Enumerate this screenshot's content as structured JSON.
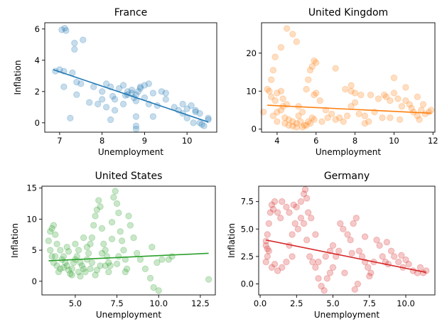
{
  "chart_data": [
    {
      "type": "scatter",
      "title": "France",
      "xlabel": "Unemployment",
      "ylabel": "Inflation",
      "xlim": [
        6.65,
        10.7
      ],
      "ylim": [
        -0.6,
        6.4
      ],
      "xticks": [
        7,
        8,
        9,
        10
      ],
      "yticks": [
        0,
        2,
        4,
        6
      ],
      "color": "#1f77b4",
      "trend": {
        "x": [
          6.85,
          10.5
        ],
        "y": [
          3.4,
          0.05
        ]
      },
      "points": [
        [
          7.05,
          5.95
        ],
        [
          7.15,
          5.9
        ],
        [
          7.12,
          6.05
        ],
        [
          7.35,
          5.1
        ],
        [
          7.35,
          4.7
        ],
        [
          7.55,
          5.3
        ],
        [
          6.9,
          3.3
        ],
        [
          7.0,
          3.4
        ],
        [
          7.1,
          3.3
        ],
        [
          7.3,
          3.2
        ],
        [
          7.4,
          2.6
        ],
        [
          7.5,
          2.5
        ],
        [
          7.1,
          2.3
        ],
        [
          7.4,
          1.8
        ],
        [
          7.25,
          0.3
        ],
        [
          7.7,
          1.3
        ],
        [
          7.9,
          1.2
        ],
        [
          7.8,
          2.3
        ],
        [
          8.0,
          2.0
        ],
        [
          8.0,
          1.5
        ],
        [
          8.1,
          2.5
        ],
        [
          8.2,
          2.3
        ],
        [
          8.25,
          1.7
        ],
        [
          8.3,
          1.5
        ],
        [
          8.1,
          1.0
        ],
        [
          8.3,
          0.8
        ],
        [
          8.2,
          0.2
        ],
        [
          8.4,
          2.2
        ],
        [
          8.5,
          2.4
        ],
        [
          8.5,
          1.2
        ],
        [
          8.6,
          1.8
        ],
        [
          8.6,
          2.0
        ],
        [
          8.7,
          2.1
        ],
        [
          8.7,
          1.9
        ],
        [
          8.75,
          1.6
        ],
        [
          8.8,
          1.4
        ],
        [
          8.8,
          1.8
        ],
        [
          8.9,
          2.2
        ],
        [
          8.9,
          2.3
        ],
        [
          8.85,
          2.0
        ],
        [
          9.0,
          1.6
        ],
        [
          9.0,
          2.4
        ],
        [
          9.1,
          2.5
        ],
        [
          9.1,
          1.2
        ],
        [
          9.2,
          1.9
        ],
        [
          9.2,
          0.4
        ],
        [
          8.8,
          0.4
        ],
        [
          8.8,
          -0.4
        ],
        [
          8.8,
          -0.2
        ],
        [
          9.4,
          2.0
        ],
        [
          9.3,
          1.1
        ],
        [
          9.5,
          1.5
        ],
        [
          9.5,
          1.9
        ],
        [
          9.7,
          1.0
        ],
        [
          9.8,
          0.8
        ],
        [
          9.9,
          1.2
        ],
        [
          9.9,
          0.6
        ],
        [
          10.0,
          0.3
        ],
        [
          10.0,
          0.9
        ],
        [
          10.1,
          1.1
        ],
        [
          10.2,
          0.8
        ],
        [
          10.2,
          0.7
        ],
        [
          10.3,
          0.6
        ],
        [
          10.3,
          0.0
        ],
        [
          10.4,
          -0.2
        ],
        [
          10.5,
          0.3
        ],
        [
          10.5,
          0.2
        ],
        [
          10.15,
          0.0
        ],
        [
          10.35,
          -0.1
        ],
        [
          8.55,
          1.75
        ]
      ]
    },
    {
      "type": "scatter",
      "title": "United Kingdom",
      "xlabel": "Unemployment",
      "ylabel": "",
      "xlim": [
        3.2,
        12.1
      ],
      "ylim": [
        -0.8,
        28
      ],
      "xticks": [
        4,
        6,
        8,
        10,
        12
      ],
      "yticks": [
        0,
        10,
        20
      ],
      "color": "#ff7f0e",
      "trend": {
        "x": [
          3.5,
          11.9
        ],
        "y": [
          6.3,
          4.2
        ]
      },
      "points": [
        [
          3.6,
          10.0
        ],
        [
          3.7,
          13.0
        ],
        [
          3.8,
          15.5
        ],
        [
          3.9,
          19.0
        ],
        [
          4.2,
          21.5
        ],
        [
          4.5,
          26.5
        ],
        [
          4.8,
          25.0
        ],
        [
          5.0,
          23.0
        ],
        [
          3.5,
          10.5
        ],
        [
          3.7,
          8.5
        ],
        [
          3.9,
          7.5
        ],
        [
          4.0,
          9.5
        ],
        [
          4.2,
          10.0
        ],
        [
          4.3,
          8.0
        ],
        [
          4.5,
          6.5
        ],
        [
          3.8,
          3.5
        ],
        [
          4.0,
          4.5
        ],
        [
          4.2,
          5.0
        ],
        [
          4.4,
          3.0
        ],
        [
          4.6,
          2.5
        ],
        [
          4.8,
          2.0
        ],
        [
          5.0,
          1.5
        ],
        [
          5.2,
          2.0
        ],
        [
          5.4,
          1.0
        ],
        [
          4.6,
          1.0
        ],
        [
          4.8,
          0.8
        ],
        [
          5.0,
          0.5
        ],
        [
          5.3,
          0.5
        ],
        [
          5.5,
          1.0
        ],
        [
          5.6,
          2.0
        ],
        [
          5.7,
          1.5
        ],
        [
          5.8,
          3.0
        ],
        [
          5.9,
          2.5
        ],
        [
          5.5,
          10.5
        ],
        [
          5.6,
          13.0
        ],
        [
          5.7,
          15.5
        ],
        [
          5.8,
          16.5
        ],
        [
          5.9,
          18.0
        ],
        [
          6.0,
          17.5
        ],
        [
          5.9,
          9.0
        ],
        [
          6.2,
          7.5
        ],
        [
          6.5,
          5.0
        ],
        [
          6.8,
          4.0
        ],
        [
          7.0,
          2.5
        ],
        [
          7.2,
          3.0
        ],
        [
          7.0,
          16.0
        ],
        [
          7.5,
          10.5
        ],
        [
          7.8,
          10.0
        ],
        [
          8.0,
          9.5
        ],
        [
          7.8,
          6.0
        ],
        [
          8.0,
          7.0
        ],
        [
          8.2,
          4.0
        ],
        [
          8.5,
          1.5
        ],
        [
          8.7,
          2.0
        ],
        [
          9.0,
          4.5
        ],
        [
          9.2,
          8.0
        ],
        [
          9.4,
          3.0
        ],
        [
          9.5,
          9.0
        ],
        [
          9.6,
          8.5
        ],
        [
          9.8,
          7.5
        ],
        [
          10.0,
          9.5
        ],
        [
          10.2,
          8.0
        ],
        [
          10.4,
          6.0
        ],
        [
          10.6,
          7.5
        ],
        [
          10.8,
          6.5
        ],
        [
          10.9,
          5.5
        ],
        [
          11.0,
          4.5
        ],
        [
          11.2,
          3.5
        ],
        [
          11.3,
          2.5
        ],
        [
          11.4,
          5.0
        ],
        [
          11.5,
          6.5
        ],
        [
          11.6,
          4.0
        ],
        [
          11.8,
          4.5
        ],
        [
          11.9,
          5.0
        ],
        [
          10.0,
          13.5
        ],
        [
          10.6,
          11.0
        ],
        [
          11.2,
          8.5
        ],
        [
          8.5,
          3.5
        ],
        [
          6.3,
          2.0
        ],
        [
          6.6,
          3.0
        ],
        [
          7.4,
          2.0
        ],
        [
          7.6,
          3.5
        ],
        [
          9.8,
          3.0
        ],
        [
          10.3,
          2.5
        ],
        [
          4.3,
          6.0
        ],
        [
          5.1,
          6.0
        ],
        [
          5.3,
          4.5
        ],
        [
          6.0,
          9.5
        ],
        [
          7.8,
          11.5
        ],
        [
          8.3,
          9.0
        ],
        [
          8.8,
          9.0
        ],
        [
          4.0,
          2.0
        ],
        [
          4.4,
          1.5
        ],
        [
          5.1,
          3.5
        ],
        [
          3.3,
          4.5
        ]
      ]
    },
    {
      "type": "scatter",
      "title": "United States",
      "xlabel": "Unemployment",
      "ylabel": "Inflation",
      "xlim": [
        3.0,
        13.4
      ],
      "ylim": [
        -2.2,
        15.3
      ],
      "xticks": [
        5.0,
        7.5,
        10.0,
        12.5
      ],
      "yticks": [
        0,
        5,
        10,
        15
      ],
      "color": "#2ca02c",
      "trend": {
        "x": [
          3.4,
          13.0
        ],
        "y": [
          3.3,
          4.5
        ]
      },
      "points": [
        [
          3.4,
          6.5
        ],
        [
          3.5,
          8.0
        ],
        [
          3.6,
          8.5
        ],
        [
          3.7,
          9.0
        ],
        [
          3.8,
          7.5
        ],
        [
          3.9,
          6.0
        ],
        [
          3.5,
          5.0
        ],
        [
          3.6,
          4.0
        ],
        [
          3.7,
          3.0
        ],
        [
          3.9,
          2.5
        ],
        [
          4.0,
          1.5
        ],
        [
          4.1,
          2.0
        ],
        [
          4.2,
          3.5
        ],
        [
          4.3,
          4.0
        ],
        [
          4.4,
          3.0
        ],
        [
          4.5,
          2.5
        ],
        [
          4.6,
          1.8
        ],
        [
          4.7,
          1.2
        ],
        [
          4.8,
          2.0
        ],
        [
          4.9,
          3.0
        ],
        [
          5.0,
          3.5
        ],
        [
          5.1,
          4.0
        ],
        [
          5.2,
          5.0
        ],
        [
          5.3,
          3.0
        ],
        [
          5.4,
          2.5
        ],
        [
          5.5,
          2.0
        ],
        [
          5.6,
          1.5
        ],
        [
          5.7,
          3.5
        ],
        [
          5.8,
          4.5
        ],
        [
          5.9,
          6.0
        ],
        [
          6.0,
          7.0
        ],
        [
          6.1,
          9.0
        ],
        [
          6.2,
          10.5
        ],
        [
          6.3,
          11.5
        ],
        [
          6.4,
          13.0
        ],
        [
          6.5,
          12.0
        ],
        [
          6.6,
          8.5
        ],
        [
          6.7,
          6.0
        ],
        [
          6.8,
          5.0
        ],
        [
          6.9,
          4.0
        ],
        [
          7.0,
          3.0
        ],
        [
          7.1,
          2.5
        ],
        [
          7.2,
          9.5
        ],
        [
          7.3,
          13.5
        ],
        [
          7.4,
          14.5
        ],
        [
          7.5,
          12.5
        ],
        [
          7.6,
          11.0
        ],
        [
          7.7,
          8.0
        ],
        [
          7.8,
          6.5
        ],
        [
          7.9,
          5.0
        ],
        [
          8.0,
          3.5
        ],
        [
          8.1,
          2.0
        ],
        [
          8.2,
          10.5
        ],
        [
          8.5,
          7.0
        ],
        [
          8.7,
          4.5
        ],
        [
          8.9,
          3.5
        ],
        [
          9.2,
          2.0
        ],
        [
          9.5,
          0.5
        ],
        [
          9.7,
          -1.0
        ],
        [
          10.0,
          -1.5
        ],
        [
          9.6,
          5.5
        ],
        [
          9.9,
          3.0
        ],
        [
          10.2,
          3.5
        ],
        [
          10.6,
          3.5
        ],
        [
          10.8,
          4.0
        ],
        [
          13.0,
          0.3
        ],
        [
          4.5,
          5.5
        ],
        [
          5.0,
          6.0
        ],
        [
          5.5,
          7.0
        ],
        [
          6.0,
          3.0
        ],
        [
          6.5,
          2.5
        ],
        [
          7.0,
          1.5
        ],
        [
          5.2,
          1.5
        ],
        [
          4.8,
          1.0
        ],
        [
          5.9,
          2.0
        ],
        [
          6.3,
          1.8
        ],
        [
          6.8,
          2.5
        ],
        [
          7.5,
          2.8
        ],
        [
          8.0,
          1.5
        ],
        [
          4.1,
          5.0
        ],
        [
          3.8,
          4.0
        ],
        [
          4.6,
          4.8
        ],
        [
          5.7,
          5.5
        ],
        [
          6.6,
          4.5
        ],
        [
          7.2,
          6.8
        ],
        [
          8.3,
          9.0
        ],
        [
          7.6,
          4.0
        ],
        [
          6.2,
          1.0
        ],
        [
          5.3,
          0.8
        ],
        [
          4.3,
          2.2
        ]
      ]
    },
    {
      "type": "scatter",
      "title": "Germany",
      "xlabel": "Unemployment",
      "ylabel": "Inflation",
      "xlim": [
        -0.1,
        12.0
      ],
      "ylim": [
        -1.0,
        8.9
      ],
      "xticks": [
        0.0,
        2.5,
        5.0,
        7.5,
        10.0
      ],
      "yticks": [
        0.0,
        2.5,
        5.0,
        7.5
      ],
      "color": "#d62728",
      "trend": {
        "x": [
          0.4,
          11.4
        ],
        "y": [
          4.0,
          1.05
        ]
      },
      "points": [
        [
          0.4,
          3.5
        ],
        [
          0.5,
          4.5
        ],
        [
          0.6,
          5.5
        ],
        [
          0.7,
          6.5
        ],
        [
          0.8,
          7.2
        ],
        [
          0.9,
          6.8
        ],
        [
          1.0,
          7.5
        ],
        [
          1.2,
          6.5
        ],
        [
          1.5,
          7.5
        ],
        [
          1.8,
          7.0
        ],
        [
          2.0,
          6.5
        ],
        [
          2.3,
          7.2
        ],
        [
          2.5,
          7.0
        ],
        [
          2.8,
          7.5
        ],
        [
          3.0,
          8.2
        ],
        [
          3.1,
          8.6
        ],
        [
          3.2,
          7.8
        ],
        [
          3.3,
          6.5
        ],
        [
          3.5,
          6.0
        ],
        [
          0.4,
          2.0
        ],
        [
          0.5,
          2.5
        ],
        [
          0.6,
          3.0
        ],
        [
          0.8,
          1.5
        ],
        [
          1.0,
          1.8
        ],
        [
          1.2,
          1.2
        ],
        [
          1.5,
          1.5
        ],
        [
          1.8,
          2.0
        ],
        [
          2.0,
          3.5
        ],
        [
          2.2,
          4.5
        ],
        [
          2.4,
          5.5
        ],
        [
          2.6,
          5.0
        ],
        [
          2.8,
          6.0
        ],
        [
          3.0,
          5.5
        ],
        [
          3.2,
          4.0
        ],
        [
          3.4,
          2.5
        ],
        [
          3.6,
          2.0
        ],
        [
          3.8,
          1.5
        ],
        [
          4.0,
          0.5
        ],
        [
          4.2,
          -0.2
        ],
        [
          4.4,
          -0.6
        ],
        [
          4.6,
          0.5
        ],
        [
          4.8,
          1.0
        ],
        [
          5.0,
          1.5
        ],
        [
          5.2,
          2.5
        ],
        [
          5.4,
          3.0
        ],
        [
          5.5,
          5.5
        ],
        [
          5.7,
          5.0
        ],
        [
          6.0,
          4.5
        ],
        [
          6.2,
          4.0
        ],
        [
          6.4,
          5.5
        ],
        [
          6.6,
          6.0
        ],
        [
          6.8,
          3.0
        ],
        [
          7.0,
          2.5
        ],
        [
          7.2,
          2.0
        ],
        [
          7.4,
          1.5
        ],
        [
          7.6,
          1.0
        ],
        [
          7.8,
          2.0
        ],
        [
          8.0,
          4.0
        ],
        [
          8.2,
          3.5
        ],
        [
          8.4,
          2.5
        ],
        [
          8.6,
          2.0
        ],
        [
          8.8,
          1.8
        ],
        [
          9.0,
          3.0
        ],
        [
          9.2,
          2.5
        ],
        [
          9.5,
          2.0
        ],
        [
          9.8,
          1.5
        ],
        [
          10.0,
          2.2
        ],
        [
          10.2,
          1.8
        ],
        [
          10.5,
          1.2
        ],
        [
          10.8,
          1.0
        ],
        [
          11.0,
          1.5
        ],
        [
          11.2,
          1.0
        ],
        [
          11.4,
          1.2
        ],
        [
          6.5,
          -0.5
        ],
        [
          6.7,
          0.0
        ],
        [
          5.0,
          3.5
        ],
        [
          4.5,
          2.5
        ],
        [
          4.0,
          2.0
        ],
        [
          2.2,
          2.5
        ],
        [
          1.4,
          6.0
        ],
        [
          3.8,
          4.5
        ],
        [
          4.8,
          3.0
        ],
        [
          6.3,
          2.8
        ],
        [
          7.2,
          4.3
        ],
        [
          8.7,
          3.8
        ],
        [
          9.7,
          2.6
        ],
        [
          0.4,
          3.9
        ],
        [
          0.5,
          3.2
        ],
        [
          5.8,
          1.0
        ],
        [
          7.5,
          0.7
        ]
      ]
    }
  ]
}
